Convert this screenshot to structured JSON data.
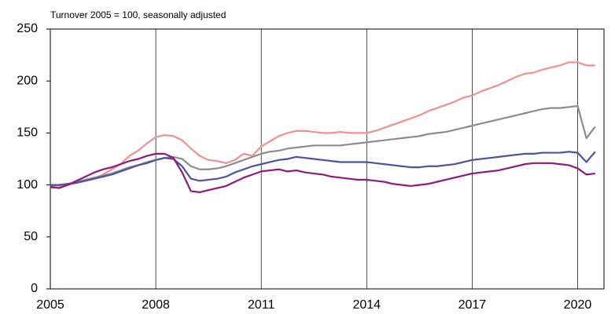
{
  "chart_data": {
    "type": "line",
    "title": "Turnover 2005 = 100, seasonally adjusted",
    "x": [
      2005,
      2005.25,
      2005.5,
      2005.75,
      2006,
      2006.25,
      2006.5,
      2006.75,
      2007,
      2007.25,
      2007.5,
      2007.75,
      2008,
      2008.25,
      2008.5,
      2008.75,
      2009,
      2009.25,
      2009.5,
      2009.75,
      2010,
      2010.25,
      2010.5,
      2010.75,
      2011,
      2011.25,
      2011.5,
      2011.75,
      2012,
      2012.25,
      2012.5,
      2012.75,
      2013,
      2013.25,
      2013.5,
      2013.75,
      2014,
      2014.25,
      2014.5,
      2014.75,
      2015,
      2015.25,
      2015.5,
      2015.75,
      2016,
      2016.25,
      2016.5,
      2016.75,
      2017,
      2017.25,
      2017.5,
      2017.75,
      2018,
      2018.25,
      2018.5,
      2018.75,
      2019,
      2019.25,
      2019.5,
      2019.75,
      2020,
      2020.25,
      2020.5
    ],
    "series": [
      {
        "color": "#f0908f",
        "values": [
          97,
          98,
          100,
          102,
          104,
          106,
          110,
          115,
          120,
          128,
          133,
          140,
          146,
          148,
          147,
          143,
          135,
          128,
          124,
          123,
          121,
          124,
          130,
          128,
          137,
          142,
          147,
          150,
          152,
          152,
          151,
          150,
          150,
          151,
          150,
          150,
          150,
          152,
          155,
          158,
          161,
          164,
          167,
          171,
          174,
          177,
          180,
          184,
          186,
          190,
          193,
          196,
          200,
          204,
          207,
          208,
          211,
          213,
          215,
          218,
          218,
          215,
          215
        ]
      },
      {
        "color": "#8c8c8c",
        "values": [
          99,
          100,
          101,
          103,
          105,
          107,
          109,
          111,
          114,
          117,
          119,
          122,
          124,
          126,
          127,
          125,
          118,
          115,
          115,
          116,
          118,
          121,
          124,
          127,
          130,
          132,
          133,
          135,
          136,
          137,
          138,
          138,
          138,
          138,
          139,
          140,
          141,
          142,
          143,
          144,
          145,
          146,
          147,
          149,
          150,
          151,
          153,
          155,
          157,
          159,
          161,
          163,
          165,
          167,
          169,
          171,
          173,
          174,
          174,
          175,
          176,
          145,
          156
        ]
      },
      {
        "color": "#4f51a0",
        "values": [
          100,
          100,
          101,
          102,
          104,
          106,
          108,
          110,
          113,
          116,
          119,
          121,
          124,
          126,
          125,
          118,
          106,
          104,
          105,
          106,
          108,
          112,
          115,
          118,
          120,
          122,
          124,
          125,
          127,
          126,
          125,
          124,
          123,
          122,
          122,
          122,
          122,
          121,
          120,
          119,
          118,
          117,
          117,
          118,
          118,
          119,
          120,
          122,
          124,
          125,
          126,
          127,
          128,
          129,
          130,
          130,
          131,
          131,
          131,
          132,
          131,
          122,
          132
        ]
      },
      {
        "color": "#8e1a7a",
        "values": [
          98,
          97,
          100,
          104,
          108,
          112,
          115,
          117,
          120,
          123,
          125,
          128,
          130,
          130,
          126,
          112,
          94,
          93,
          95,
          97,
          99,
          103,
          107,
          110,
          113,
          114,
          115,
          113,
          114,
          112,
          111,
          110,
          108,
          107,
          106,
          105,
          105,
          104,
          103,
          101,
          100,
          99,
          100,
          101,
          103,
          105,
          107,
          109,
          111,
          112,
          113,
          114,
          116,
          118,
          120,
          121,
          121,
          121,
          120,
          119,
          116,
          110,
          111
        ]
      }
    ],
    "xlim": [
      2005,
      2020.75
    ],
    "xticks": [
      2005,
      2008,
      2011,
      2014,
      2017,
      2020
    ],
    "ylim": [
      0,
      250
    ],
    "yticks": [
      0,
      50,
      100,
      150,
      200,
      250
    ],
    "grid": "x"
  }
}
